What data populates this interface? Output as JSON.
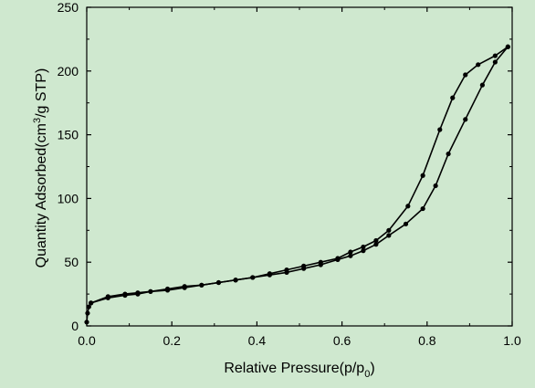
{
  "colors": {
    "background": "#cfe8cf",
    "line": "#000000"
  },
  "chart_data": {
    "type": "line",
    "xlabel_main": "Relative Pressure(p/p",
    "xlabel_sub": "0",
    "xlabel_end": ")",
    "ylabel_a": "Quantity Adsorbed(cm",
    "ylabel_sup": "3",
    "ylabel_b": "/g STP)",
    "xlim": [
      0.0,
      1.0
    ],
    "ylim": [
      0,
      250
    ],
    "x_ticks": [
      "0.0",
      "0.2",
      "0.4",
      "0.6",
      "0.8",
      "1.0"
    ],
    "y_ticks": [
      "0",
      "50",
      "100",
      "150",
      "200",
      "250"
    ],
    "grid": false,
    "series": [
      {
        "x": [
          0.0,
          0.002,
          0.005,
          0.01,
          0.05,
          0.09,
          0.12,
          0.15,
          0.19,
          0.23,
          0.27,
          0.31,
          0.35,
          0.39,
          0.43,
          0.47,
          0.51,
          0.55,
          0.59,
          0.62,
          0.65,
          0.68,
          0.71,
          0.75,
          0.79,
          0.82,
          0.85,
          0.89,
          0.93,
          0.96,
          0.99
        ],
        "y": [
          3,
          10,
          15,
          18,
          22,
          24,
          25,
          27,
          29,
          31,
          32,
          34,
          36,
          38,
          40,
          42,
          45,
          48,
          52,
          55,
          59,
          64,
          71,
          80,
          92,
          110,
          135,
          162,
          189,
          207,
          219
        ]
      },
      {
        "x": [
          0.99,
          0.96,
          0.92,
          0.89,
          0.86,
          0.83,
          0.79,
          0.755,
          0.71,
          0.68,
          0.65,
          0.62,
          0.59,
          0.55,
          0.51,
          0.47,
          0.43,
          0.39,
          0.35,
          0.31,
          0.27,
          0.23,
          0.19,
          0.15,
          0.12,
          0.09,
          0.05,
          0.01
        ],
        "y": [
          219,
          212,
          205,
          197,
          179,
          154,
          118,
          94,
          75,
          67,
          62,
          58,
          53,
          50,
          47,
          44,
          41,
          38,
          36,
          34,
          32,
          30,
          28,
          27,
          26,
          25,
          23,
          18
        ]
      }
    ]
  }
}
